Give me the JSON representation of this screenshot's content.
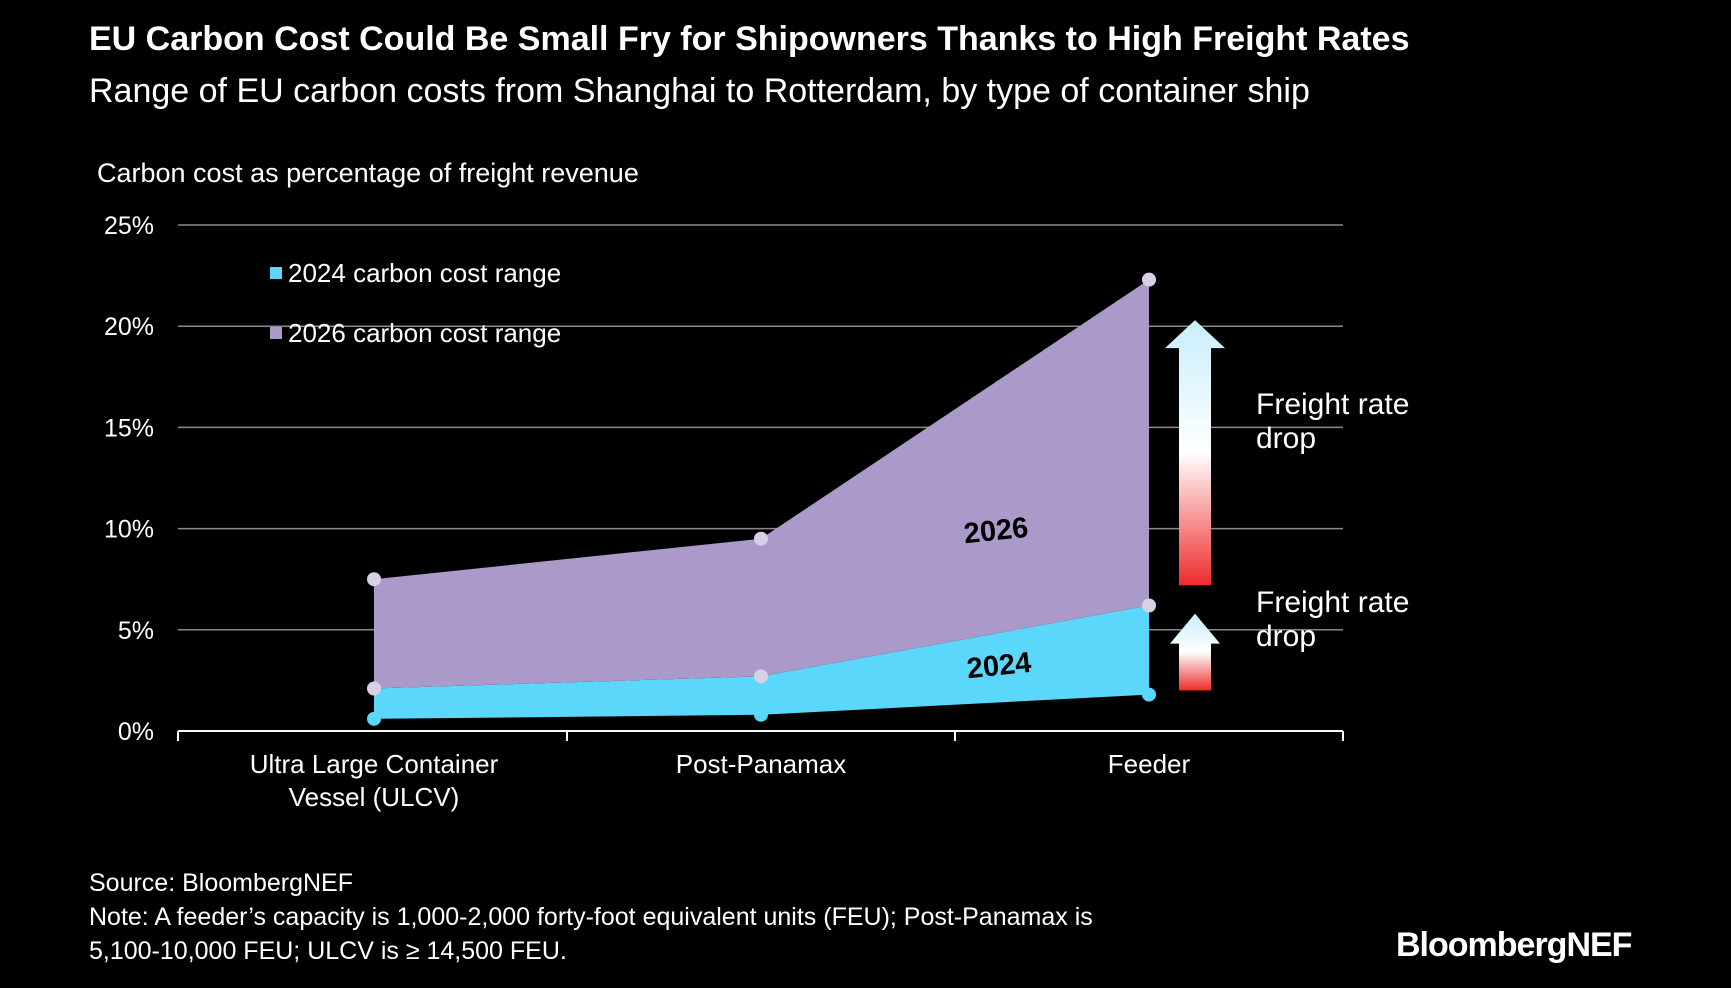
{
  "title": "EU Carbon Cost Could Be Small Fry for Shipowners Thanks to High Freight Rates",
  "subtitle": "Range of EU carbon costs from Shanghai to Rotterdam, by type of container ship",
  "footer": {
    "source": "Source: BloombergNEF",
    "note_line1": "Note: A feeder’s capacity is 1,000-2,000 forty-foot equivalent units (FEU); Post-Panamax is",
    "note_line2": "5,100-10,000 FEU; ULCV is ≥ 14,500 FEU."
  },
  "brand": "BloombergNEF",
  "colors": {
    "background": "#000000",
    "range_2024": "#5bd7fb",
    "range_2026": "#ab99c9",
    "marker": "#d8d0e6",
    "grid": "#8a8a8a",
    "arrow_top": "#c8eefc",
    "arrow_bottom": "#ee2b2b"
  },
  "chart_data": {
    "type": "area",
    "ylabel": "Carbon cost as percentage of freight revenue",
    "xlabel": "",
    "categories": [
      "Ultra Large Container Vessel (ULCV)",
      "Post-Panamax",
      "Feeder"
    ],
    "category_lines": [
      [
        "Ultra Large Container",
        "Vessel (ULCV)"
      ],
      [
        "Post-Panamax"
      ],
      [
        "Feeder"
      ]
    ],
    "ylim": [
      0,
      25
    ],
    "yticks": [
      0,
      5,
      10,
      15,
      20,
      25
    ],
    "ytick_labels": [
      "0%",
      "5%",
      "10%",
      "15%",
      "20%",
      "25%"
    ],
    "grid": true,
    "legend_position": "top-left",
    "series": [
      {
        "name": "2024 carbon cost range",
        "area_label": "2024",
        "low": [
          0.6,
          0.8,
          1.8
        ],
        "high": [
          2.1,
          2.7,
          6.2
        ]
      },
      {
        "name": "2026 carbon cost range",
        "area_label": "2026",
        "low": [
          2.1,
          2.7,
          6.2
        ],
        "high": [
          7.5,
          9.5,
          22.3
        ]
      }
    ],
    "annotations": [
      {
        "text_lines": [
          "Freight rate",
          "drop"
        ],
        "arrow_from": 7.2,
        "arrow_to": 20.3
      },
      {
        "text_lines": [
          "Freight rate",
          "drop"
        ],
        "arrow_from": 2.0,
        "arrow_to": 5.8
      }
    ]
  }
}
